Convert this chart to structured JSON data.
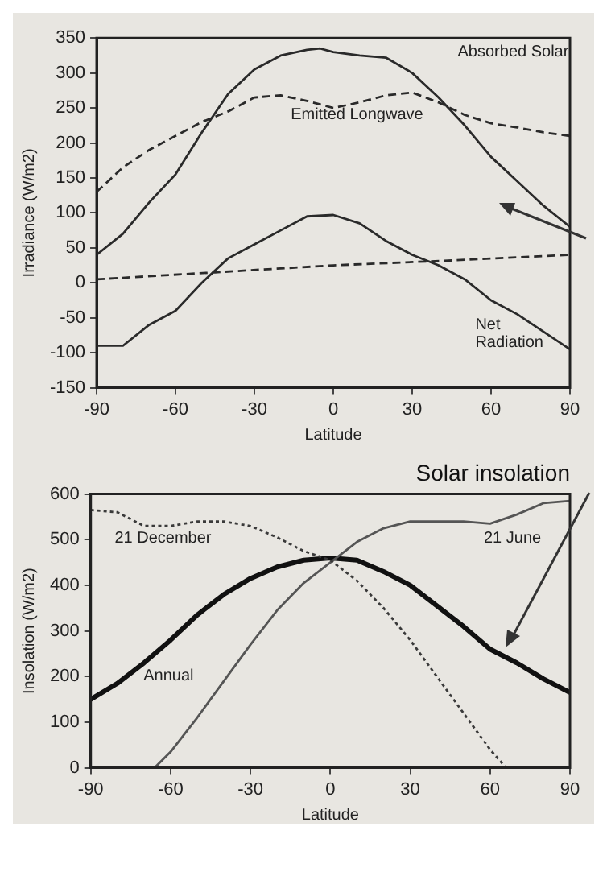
{
  "chart_data": [
    {
      "type": "line",
      "xlabel": "Latitude",
      "ylabel": "Irradiance (W/m2)",
      "xlim": [
        -90,
        90
      ],
      "xticks": [
        -90,
        -60,
        -30,
        0,
        30,
        60,
        90
      ],
      "ylim": [
        -150,
        350
      ],
      "yticks": [
        -150,
        -100,
        -50,
        0,
        50,
        100,
        150,
        200,
        250,
        300,
        350
      ],
      "grid": false,
      "legend": false,
      "marker": "none",
      "series": [
        {
          "name": "Absorbed Solar",
          "color": "#2a2a2a",
          "line_style": "solid",
          "x": [
            -90,
            -80,
            -70,
            -60,
            -50,
            -40,
            -30,
            -20,
            -10,
            -5,
            0,
            10,
            20,
            30,
            40,
            50,
            60,
            70,
            80,
            90
          ],
          "values": [
            40,
            70,
            115,
            155,
            215,
            270,
            305,
            325,
            333,
            335,
            330,
            325,
            322,
            300,
            265,
            225,
            180,
            145,
            110,
            80
          ]
        },
        {
          "name": "Emitted Longwave",
          "color": "#2a2a2a",
          "line_style": "dashed",
          "x": [
            -90,
            -80,
            -70,
            -60,
            -50,
            -40,
            -30,
            -20,
            -10,
            0,
            10,
            20,
            30,
            40,
            50,
            60,
            70,
            80,
            90
          ],
          "values": [
            130,
            165,
            190,
            210,
            230,
            245,
            265,
            268,
            260,
            250,
            258,
            268,
            272,
            258,
            240,
            228,
            222,
            215,
            210
          ]
        },
        {
          "name": "Net Radiation",
          "color": "#2a2a2a",
          "line_style": "solid",
          "x": [
            -90,
            -80,
            -70,
            -60,
            -50,
            -40,
            -30,
            -20,
            -10,
            0,
            10,
            20,
            30,
            40,
            50,
            60,
            70,
            80,
            90
          ],
          "values": [
            -90,
            -90,
            -60,
            -40,
            0,
            35,
            55,
            75,
            95,
            97,
            85,
            60,
            40,
            25,
            5,
            -25,
            -45,
            -70,
            -95
          ]
        },
        {
          "color": "#2a2a2a",
          "line_style": "dashed",
          "x": [
            -90,
            -45,
            0,
            45,
            90
          ],
          "values": [
            5,
            15,
            25,
            32,
            40
          ]
        }
      ]
    },
    {
      "type": "line",
      "title": "Solar insolation",
      "xlabel": "Latitude",
      "ylabel": "Insolation (W/m2)",
      "xlim": [
        -90,
        90
      ],
      "xticks": [
        -90,
        -60,
        -30,
        0,
        30,
        60,
        90
      ],
      "ylim": [
        0,
        600
      ],
      "yticks": [
        0,
        100,
        200,
        300,
        400,
        500,
        600
      ],
      "grid": false,
      "legend": false,
      "marker": "none",
      "series": [
        {
          "name": "21 December",
          "color": "#3a3a3a",
          "line_style": "dotted",
          "x": [
            -90,
            -80,
            -70,
            -60,
            -50,
            -40,
            -30,
            -20,
            -10,
            0,
            10,
            20,
            30,
            40,
            50,
            60,
            66,
            90
          ],
          "values": [
            565,
            560,
            530,
            530,
            540,
            540,
            530,
            505,
            475,
            455,
            410,
            350,
            280,
            200,
            120,
            40,
            0,
            0
          ]
        },
        {
          "name": "21 June",
          "color": "#555555",
          "line_style": "solid",
          "x": [
            -90,
            -66,
            -60,
            -50,
            -40,
            -30,
            -20,
            -10,
            0,
            10,
            20,
            30,
            40,
            50,
            60,
            70,
            80,
            90
          ],
          "values": [
            0,
            0,
            35,
            110,
            190,
            270,
            345,
            405,
            450,
            495,
            525,
            540,
            540,
            540,
            535,
            555,
            580,
            585
          ]
        },
        {
          "name": "Annual",
          "color": "#111111",
          "line_style": "solid",
          "x": [
            -90,
            -80,
            -70,
            -60,
            -50,
            -40,
            -30,
            -20,
            -10,
            0,
            10,
            20,
            30,
            40,
            50,
            60,
            70,
            80,
            90
          ],
          "values": [
            150,
            185,
            230,
            280,
            335,
            380,
            415,
            440,
            455,
            460,
            455,
            430,
            400,
            355,
            310,
            260,
            230,
            195,
            165
          ]
        }
      ]
    }
  ]
}
